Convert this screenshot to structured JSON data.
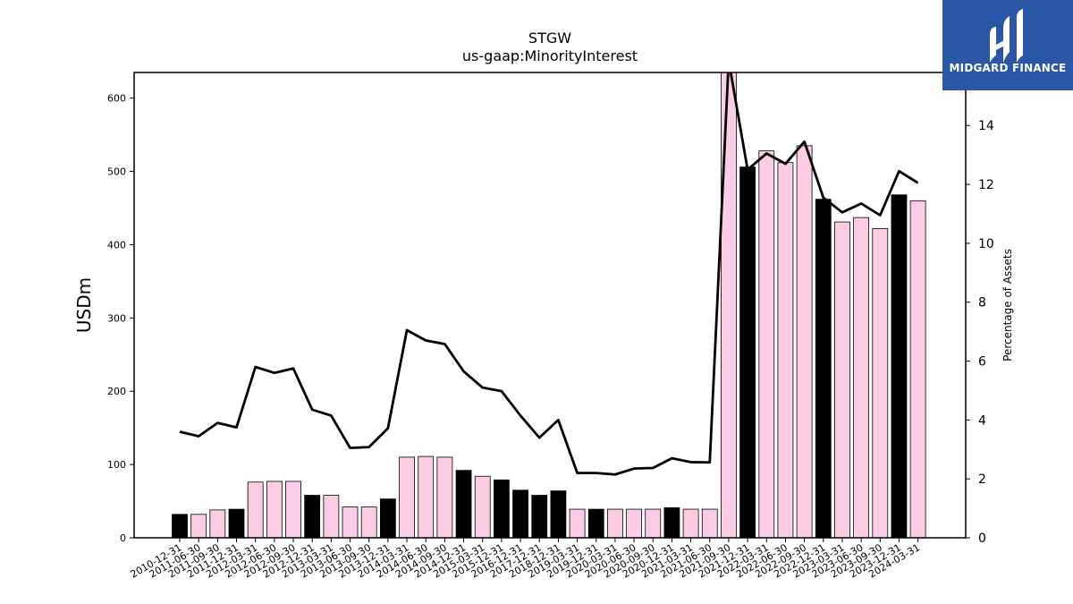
{
  "chart_data": {
    "type": "bar",
    "title": "STGW",
    "subtitle": "us-gaap:MinorityInterest",
    "ylabel": "USDm",
    "y2label": "Percentage of Assets",
    "ylim": [
      0,
      635
    ],
    "y2lim": [
      0,
      15.8
    ],
    "yticks": [
      0,
      100,
      200,
      300,
      400,
      500,
      600
    ],
    "y2ticks": [
      0,
      2,
      4,
      6,
      8,
      10,
      12,
      14
    ],
    "categories": [
      "2010-12-31",
      "2011-06-30",
      "2011-09-30",
      "2011-12-31",
      "2012-03-31",
      "2012-06-30",
      "2012-09-30",
      "2012-12-31",
      "2013-03-31",
      "2013-06-30",
      "2013-09-30",
      "2013-12-31",
      "2014-03-31",
      "2014-06-30",
      "2014-09-30",
      "2014-12-31",
      "2015-03-31",
      "2015-12-31",
      "2016-12-31",
      "2017-12-31",
      "2018-12-31",
      "2019-03-31",
      "2019-12-31",
      "2020-03-31",
      "2020-06-30",
      "2020-09-30",
      "2020-12-31",
      "2021-03-31",
      "2021-06-30",
      "2021-09-30",
      "2021-12-31",
      "2022-03-31",
      "2022-06-30",
      "2022-09-30",
      "2022-12-31",
      "2023-03-31",
      "2023-06-30",
      "2023-09-30",
      "2023-12-31",
      "2024-03-31"
    ],
    "series": [
      {
        "type": "bar",
        "values": [
          32,
          32,
          38,
          39,
          76,
          77,
          77,
          58,
          58,
          42,
          42,
          53,
          110,
          111,
          110,
          92,
          84,
          79,
          65,
          58,
          64,
          39,
          39,
          39,
          39,
          39,
          41,
          39,
          39,
          635,
          506,
          528,
          512,
          535,
          462,
          431,
          437,
          422,
          468,
          460
        ],
        "colors": [
          "#000000",
          "#fccce4",
          "#fccce4",
          "#000000",
          "#fccce4",
          "#fccce4",
          "#fccce4",
          "#000000",
          "#fccce4",
          "#fccce4",
          "#fccce4",
          "#000000",
          "#fccce4",
          "#fccce4",
          "#fccce4",
          "#000000",
          "#fccce4",
          "#000000",
          "#000000",
          "#000000",
          "#000000",
          "#fccce4",
          "#000000",
          "#fccce4",
          "#fccce4",
          "#fccce4",
          "#000000",
          "#fccce4",
          "#fccce4",
          "#fccce4",
          "#000000",
          "#fccce4",
          "#fccce4",
          "#fccce4",
          "#000000",
          "#fccce4",
          "#fccce4",
          "#fccce4",
          "#000000",
          "#fccce4"
        ]
      },
      {
        "type": "line",
        "axis": "right",
        "values": [
          3.6,
          3.45,
          3.9,
          3.75,
          5.8,
          5.6,
          5.75,
          4.35,
          4.15,
          3.05,
          3.08,
          3.72,
          7.05,
          6.7,
          6.58,
          5.65,
          5.1,
          4.98,
          4.15,
          3.4,
          4.0,
          2.2,
          2.2,
          2.15,
          2.35,
          2.37,
          2.7,
          2.57,
          2.56,
          16.2,
          12.5,
          13.05,
          12.7,
          13.45,
          11.55,
          11.05,
          11.35,
          10.95,
          12.45,
          12.05
        ]
      }
    ]
  },
  "logo": {
    "text": "MIDGARD FINANCE",
    "icon": "midgard-logo-icon",
    "background": "#2b57a8"
  }
}
